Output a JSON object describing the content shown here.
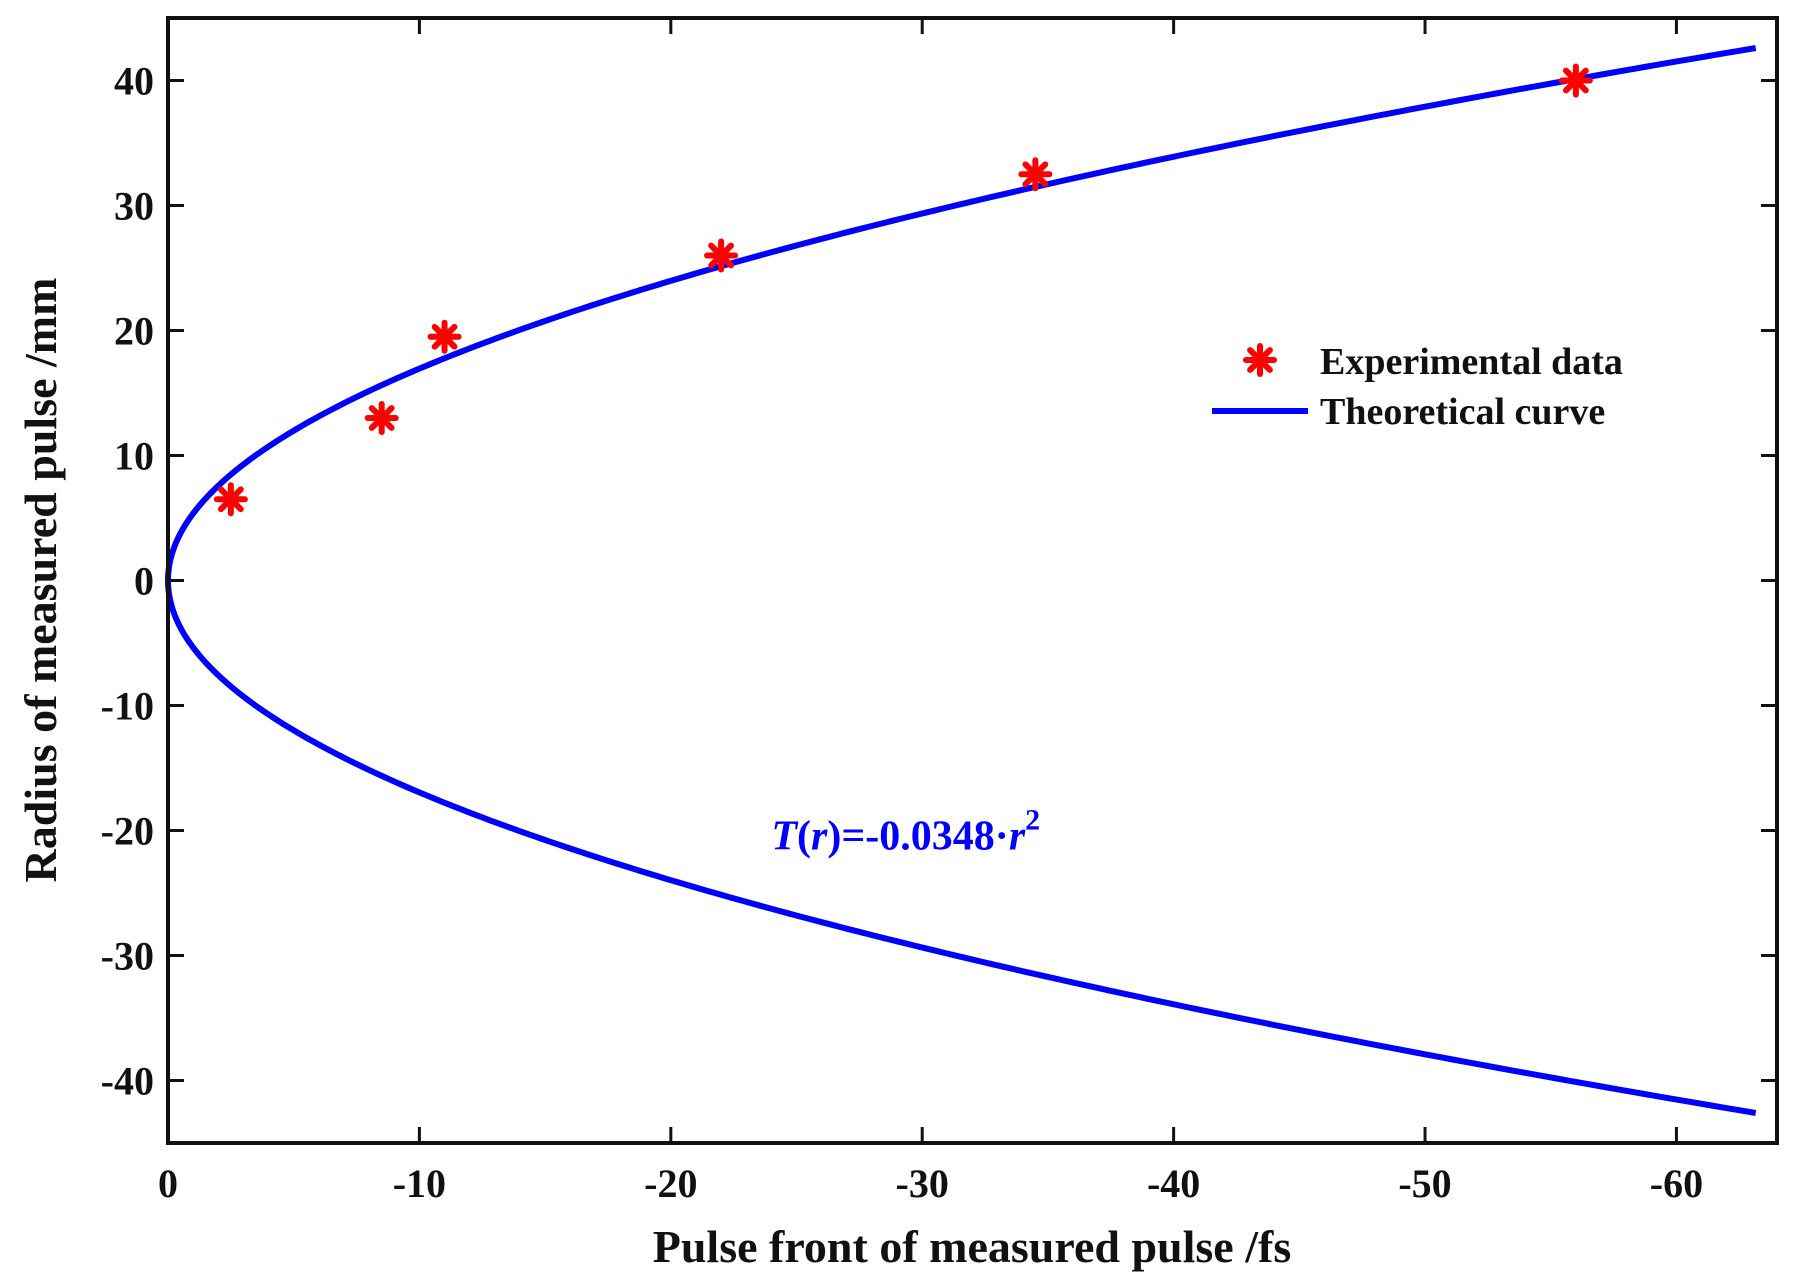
{
  "chart_data": {
    "type": "scatter",
    "title": "",
    "xlabel": "Pulse front of measured pulse /fs",
    "ylabel": "Radius of measured pulse /mm",
    "xlim": [
      0,
      -64
    ],
    "ylim": [
      -45,
      45
    ],
    "xticks": [
      0,
      -10,
      -20,
      -30,
      -40,
      -50,
      -60
    ],
    "yticks": [
      40,
      30,
      20,
      10,
      0,
      -10,
      -20,
      -30,
      -40
    ],
    "xtick_labels": [
      "0",
      "-10",
      "-20",
      "-30",
      "-40",
      "-50",
      "-60"
    ],
    "ytick_labels": [
      "40",
      "30",
      "20",
      "10",
      "0",
      "-10",
      "-20",
      "-30",
      "-40"
    ],
    "grid": false,
    "legend_position": "right-upper",
    "series": [
      {
        "name": "Experimental data",
        "kind": "markers",
        "marker": "asterisk",
        "color": "#ff0000",
        "x": [
          -2.5,
          -8.5,
          -11,
          -22,
          -34.5,
          -56
        ],
        "y": [
          6.5,
          13,
          19.5,
          26,
          32.5,
          40
        ]
      },
      {
        "name": "Theoretical curve",
        "kind": "line",
        "color": "#0000ff",
        "equation": "T(r) = -0.0348 * r^2",
        "coefficient": -0.0348,
        "r_range": [
          -42.6,
          42.6
        ]
      }
    ],
    "annotation": {
      "prefix_italic": "T",
      "open_paren": "(",
      "var_italic": "r",
      "mid": ")=-0.0348·",
      "var2_italic": "r",
      "superscript": "2",
      "color": "#0000ff",
      "anchor": {
        "x": -24,
        "y": -21.5
      }
    }
  }
}
